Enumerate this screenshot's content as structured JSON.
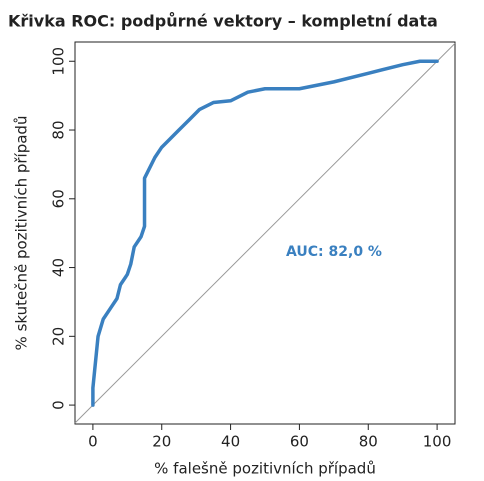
{
  "chart_data": {
    "type": "line",
    "title": "Křivka ROC: podpůrné vektory – kompletní data",
    "x_label": "% falešně pozitivních případů",
    "y_label": "% skutečně pozitivních případů",
    "annotation": "AUC: 82,0 %",
    "x": [
      0,
      0,
      0.5,
      1,
      1.5,
      3,
      5,
      7,
      8,
      10,
      11,
      12,
      14,
      15,
      15,
      16,
      18,
      20,
      22,
      25,
      28,
      31,
      35,
      40,
      45,
      50,
      60,
      70,
      80,
      90,
      95,
      100
    ],
    "series": [
      {
        "color": "#3a80c0",
        "values": [
          0,
          5,
          10,
          15,
          20,
          25,
          28,
          31,
          35,
          38,
          41,
          46,
          49,
          52,
          66,
          68,
          72,
          75,
          77,
          80,
          83,
          86,
          88,
          88.5,
          91,
          92,
          92,
          94,
          96.5,
          99,
          100,
          100
        ]
      }
    ],
    "xlim": [
      -5.2,
      105.2
    ],
    "ylim": [
      -5.5,
      105.6
    ],
    "xticks": [
      0,
      20,
      40,
      60,
      80,
      100
    ],
    "yticks": [
      0,
      20,
      40,
      60,
      80,
      100
    ]
  }
}
